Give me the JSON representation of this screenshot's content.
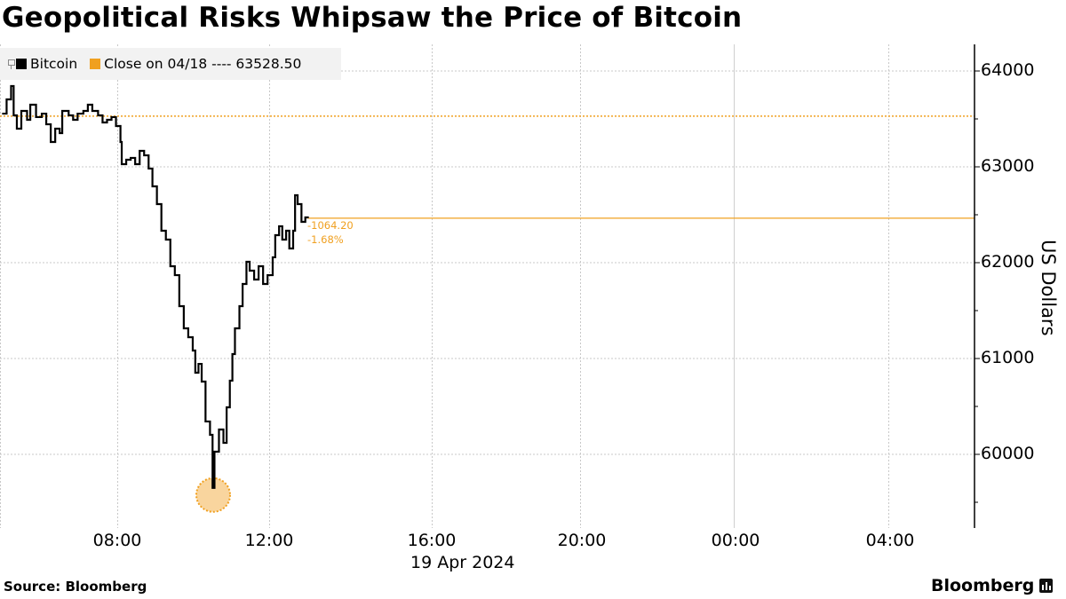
{
  "title": "Geopolitical Risks Whipsaw the Price of Bitcoin",
  "legend": {
    "items": [
      {
        "label": "Bitcoin",
        "color": "#000000"
      },
      {
        "label": "Close on 04/18 ---- 63528.50",
        "color": "#f0a020"
      }
    ]
  },
  "axis": {
    "y_label": "US Dollars",
    "y_ticks": [
      "64000",
      "63000",
      "62000",
      "61000",
      "60000"
    ],
    "x_ticks": [
      "08:00",
      "12:00",
      "16:00",
      "20:00",
      "00:00",
      "04:00"
    ],
    "date_label": "19 Apr 2024"
  },
  "annotations": {
    "last_change": "-1064.20",
    "last_change_display": "1064.20",
    "last_pct": "-1.68%",
    "close_value": "63528.50"
  },
  "footer": {
    "source": "Source: Bloomberg",
    "brand": "Bloomberg"
  },
  "colors": {
    "series": "#000000",
    "close_line": "#f0a020",
    "grid": "#bdbdbd",
    "highlight": "#f7c77e"
  },
  "chart_data": {
    "type": "line",
    "title": "Geopolitical Risks Whipsaw the Price of Bitcoin",
    "xlabel": "19 Apr 2024",
    "ylabel": "US Dollars",
    "ylim": [
      59450,
      64300
    ],
    "x_tick_labels": [
      "08:00",
      "12:00",
      "16:00",
      "20:00",
      "00:00",
      "04:00"
    ],
    "legend": [
      "Bitcoin",
      "Close on 04/18 ---- 63528.50"
    ],
    "reference_line": {
      "name": "Close on 04/18",
      "value": 63528.5
    },
    "last_value": 62464.3,
    "last_change": -1064.2,
    "last_change_pct": -1.68,
    "min_point": {
      "time": "10:30",
      "value": 59650
    },
    "x": [
      "05:00",
      "05:07",
      "05:14",
      "05:18",
      "05:23",
      "05:30",
      "05:39",
      "05:44",
      "05:53",
      "06:02",
      "06:09",
      "06:16",
      "06:23",
      "06:30",
      "06:34",
      "06:44",
      "06:51",
      "06:58",
      "07:07",
      "07:14",
      "07:21",
      "07:30",
      "07:37",
      "07:44",
      "07:51",
      "07:58",
      "08:05",
      "08:07",
      "08:14",
      "08:21",
      "08:28",
      "08:35",
      "08:42",
      "08:49",
      "08:55",
      "09:02",
      "09:09",
      "09:16",
      "09:23",
      "09:30",
      "09:37",
      "09:44",
      "09:51",
      "09:58",
      "10:02",
      "10:07",
      "10:12",
      "10:18",
      "10:25",
      "10:29",
      "10:32",
      "10:39",
      "10:46",
      "10:51",
      "10:56",
      "11:00",
      "11:04",
      "11:11",
      "11:16",
      "11:22",
      "11:27",
      "11:34",
      "11:41",
      "11:48",
      "11:55",
      "12:03",
      "12:07",
      "12:13",
      "12:18",
      "12:24",
      "12:29",
      "12:35",
      "12:38",
      "12:42",
      "12:48",
      "12:54",
      "12:58"
    ],
    "series": [
      {
        "name": "Bitcoin",
        "values": [
          63555,
          63704,
          63843,
          63537,
          63398,
          63583,
          63491,
          63648,
          63519,
          63555,
          63444,
          63259,
          63398,
          63352,
          63583,
          63537,
          63491,
          63555,
          63583,
          63648,
          63583,
          63537,
          63463,
          63491,
          63519,
          63426,
          63259,
          63028,
          63074,
          63093,
          63028,
          63167,
          63120,
          62982,
          62796,
          62611,
          62333,
          62241,
          61963,
          61870,
          61546,
          61315,
          61222,
          61083,
          60852,
          60944,
          60759,
          60343,
          60204,
          59650,
          60028,
          60259,
          60120,
          60491,
          60769,
          61046,
          61315,
          61546,
          61778,
          62009,
          61917,
          61824,
          61963,
          61778,
          61870,
          62056,
          62287,
          62380,
          62241,
          62333,
          62148,
          62333,
          62704,
          62611,
          62426,
          62472,
          62464
        ]
      }
    ]
  }
}
